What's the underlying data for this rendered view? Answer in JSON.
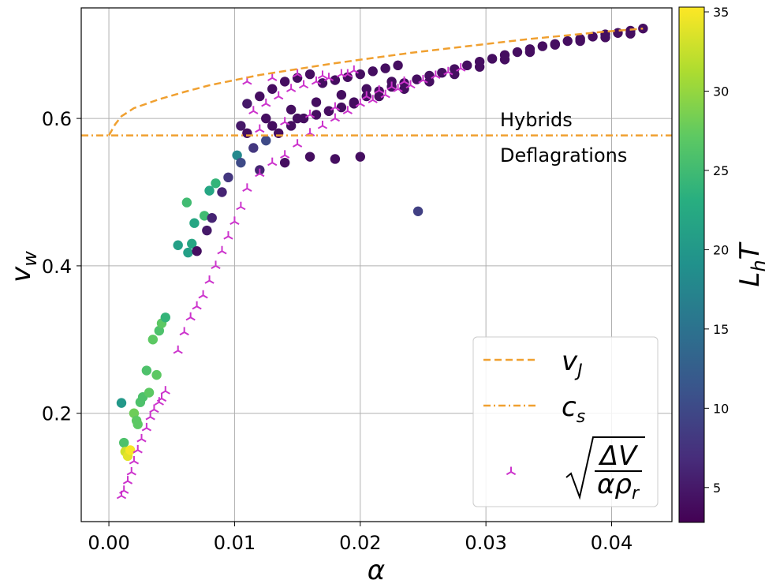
{
  "chart_data": {
    "type": "scatter",
    "xlabel": "α",
    "ylabel_main": "v",
    "ylabel_sub": "w",
    "xlim": [
      -0.0022,
      0.0448
    ],
    "ylim": [
      0.053,
      0.75
    ],
    "x_ticks": [
      0.0,
      0.01,
      0.02,
      0.03,
      0.04
    ],
    "x_tick_labels": [
      "0.00",
      "0.01",
      "0.02",
      "0.03",
      "0.04"
    ],
    "y_ticks": [
      0.2,
      0.4,
      0.6
    ],
    "y_tick_labels": [
      "0.2",
      "0.4",
      "0.6"
    ],
    "grid": true,
    "annotations": [
      "Hybrids",
      "Deflagrations"
    ],
    "colorbar": {
      "label_main": "L",
      "label_sub": "h",
      "label_tail": "T",
      "range": [
        2.8,
        35.3
      ],
      "colormap": "viridis",
      "ticks": [
        5,
        10,
        15,
        20,
        25,
        30,
        35
      ],
      "tick_labels": [
        "5",
        "10",
        "15",
        "20",
        "25",
        "30",
        "35"
      ]
    },
    "legend": {
      "placement": "lower-right",
      "entries": [
        {
          "label_main": "v",
          "label_sub": "J",
          "style": "dashed",
          "color": "#f0a030"
        },
        {
          "label_main": "c",
          "label_sub": "s",
          "style": "dashdot",
          "color": "#f0a030"
        },
        {
          "label_main": "ΔV",
          "label_den": "αρ",
          "label_den_sub": "r",
          "style": "tri-marker",
          "color": "#cc33cc"
        }
      ]
    },
    "series": [
      {
        "name": "v_J",
        "kind": "curve",
        "color": "#f0a030",
        "x": [
          0.0,
          0.0005,
          0.001,
          0.002,
          0.004,
          0.006,
          0.008,
          0.01,
          0.012,
          0.015,
          0.018,
          0.021,
          0.024,
          0.027,
          0.03,
          0.033,
          0.036,
          0.039,
          0.0425
        ],
        "y": [
          0.577,
          0.592,
          0.603,
          0.614,
          0.626,
          0.636,
          0.645,
          0.652,
          0.659,
          0.667,
          0.675,
          0.682,
          0.689,
          0.695,
          0.701,
          0.707,
          0.712,
          0.717,
          0.722
        ]
      },
      {
        "name": "c_s",
        "kind": "hline",
        "color": "#f0a030",
        "y": 0.577
      },
      {
        "name": "sqrt(ΔV/(αρ_r))",
        "kind": "markers",
        "color": "#cc33cc",
        "x": [
          0.001,
          0.0012,
          0.0015,
          0.0018,
          0.002,
          0.0023,
          0.0026,
          0.003,
          0.0033,
          0.0036,
          0.004,
          0.0042,
          0.0045,
          0.0055,
          0.006,
          0.0065,
          0.007,
          0.0075,
          0.008,
          0.0085,
          0.009,
          0.0095,
          0.01,
          0.0105,
          0.011,
          0.012,
          0.013,
          0.014,
          0.015,
          0.016,
          0.017,
          0.018,
          0.019,
          0.02,
          0.021,
          0.022,
          0.023,
          0.024,
          0.025,
          0.026,
          0.027,
          0.028,
          0.0115,
          0.0125,
          0.0135,
          0.0145,
          0.0155,
          0.0165,
          0.0175,
          0.0185,
          0.0195,
          0.012,
          0.014,
          0.016,
          0.018,
          0.0205,
          0.0215,
          0.0225,
          0.0235,
          0.011,
          0.013,
          0.015,
          0.017,
          0.019
        ],
        "y": [
          0.088,
          0.095,
          0.108,
          0.12,
          0.135,
          0.15,
          0.165,
          0.18,
          0.195,
          0.205,
          0.215,
          0.22,
          0.23,
          0.285,
          0.31,
          0.33,
          0.345,
          0.36,
          0.38,
          0.4,
          0.42,
          0.44,
          0.46,
          0.48,
          0.505,
          0.525,
          0.54,
          0.55,
          0.565,
          0.58,
          0.59,
          0.6,
          0.61,
          0.62,
          0.625,
          0.632,
          0.64,
          0.645,
          0.652,
          0.658,
          0.663,
          0.668,
          0.61,
          0.62,
          0.63,
          0.64,
          0.645,
          0.65,
          0.655,
          0.66,
          0.665,
          0.585,
          0.595,
          0.605,
          0.615,
          0.63,
          0.638,
          0.643,
          0.65,
          0.65,
          0.655,
          0.66,
          0.658,
          0.66
        ]
      },
      {
        "name": "L_h T",
        "kind": "colored-points",
        "x": [
          0.001,
          0.0012,
          0.0013,
          0.0015,
          0.0017,
          0.002,
          0.0022,
          0.0023,
          0.0025,
          0.0027,
          0.003,
          0.0032,
          0.0035,
          0.0038,
          0.004,
          0.0042,
          0.0045,
          0.0055,
          0.0062,
          0.0063,
          0.0066,
          0.0068,
          0.007,
          0.0076,
          0.0078,
          0.008,
          0.0082,
          0.0085,
          0.009,
          0.0095,
          0.0102,
          0.0105,
          0.0115,
          0.0125,
          0.0135,
          0.0145,
          0.0155,
          0.0165,
          0.0175,
          0.0185,
          0.0195,
          0.0205,
          0.0215,
          0.0225,
          0.0235,
          0.0245,
          0.0255,
          0.0265,
          0.0275,
          0.0285,
          0.0295,
          0.0305,
          0.0315,
          0.0325,
          0.0335,
          0.0345,
          0.0355,
          0.0365,
          0.0375,
          0.0385,
          0.0395,
          0.0405,
          0.0415,
          0.0425,
          0.011,
          0.012,
          0.013,
          0.014,
          0.015,
          0.016,
          0.017,
          0.018,
          0.019,
          0.02,
          0.021,
          0.022,
          0.023,
          0.0246,
          0.012,
          0.014,
          0.016,
          0.018,
          0.02,
          0.011,
          0.013,
          0.015,
          0.0175,
          0.0195,
          0.0215,
          0.0235,
          0.0255,
          0.0275,
          0.0295,
          0.0315,
          0.0335,
          0.0355,
          0.0375,
          0.0395,
          0.0415,
          0.0105,
          0.0125,
          0.0145,
          0.0165,
          0.0185,
          0.0205,
          0.0225
        ],
        "y": [
          0.214,
          0.16,
          0.148,
          0.142,
          0.15,
          0.2,
          0.19,
          0.185,
          0.215,
          0.222,
          0.258,
          0.228,
          0.3,
          0.252,
          0.312,
          0.322,
          0.33,
          0.428,
          0.486,
          0.418,
          0.43,
          0.458,
          0.42,
          0.468,
          0.448,
          0.502,
          0.465,
          0.512,
          0.5,
          0.52,
          0.55,
          0.54,
          0.56,
          0.57,
          0.58,
          0.59,
          0.6,
          0.605,
          0.61,
          0.615,
          0.622,
          0.63,
          0.637,
          0.643,
          0.648,
          0.653,
          0.658,
          0.662,
          0.667,
          0.672,
          0.677,
          0.681,
          0.686,
          0.69,
          0.694,
          0.698,
          0.701,
          0.705,
          0.708,
          0.711,
          0.714,
          0.716,
          0.719,
          0.722,
          0.62,
          0.63,
          0.64,
          0.65,
          0.655,
          0.66,
          0.648,
          0.652,
          0.656,
          0.66,
          0.664,
          0.668,
          0.672,
          0.474,
          0.53,
          0.54,
          0.548,
          0.545,
          0.548,
          0.58,
          0.59,
          0.6,
          0.61,
          0.62,
          0.63,
          0.64,
          0.65,
          0.66,
          0.67,
          0.68,
          0.69,
          0.7,
          0.705,
          0.71,
          0.715,
          0.59,
          0.6,
          0.612,
          0.622,
          0.632,
          0.64,
          0.65
        ],
        "c": [
          20,
          26,
          33,
          34,
          35,
          28,
          27,
          27,
          26,
          26,
          26,
          27,
          27,
          27,
          26,
          27,
          24,
          21,
          25,
          21,
          22,
          22,
          4,
          25,
          5,
          22,
          6,
          24,
          6,
          8,
          18,
          10,
          8,
          10,
          4,
          4,
          4,
          4,
          4,
          4,
          4,
          4,
          4,
          4,
          4,
          4,
          4,
          4,
          4,
          4,
          4,
          4,
          4,
          4,
          4,
          4,
          4,
          4,
          4,
          4,
          4,
          4,
          4,
          4,
          5,
          4,
          4,
          4,
          4,
          4,
          4,
          4,
          4,
          4,
          4,
          4,
          4,
          9,
          6,
          4,
          4,
          4,
          4,
          4,
          4,
          4,
          4,
          4,
          4,
          4,
          4,
          4,
          4,
          4,
          4,
          4,
          4,
          4,
          4,
          5,
          4,
          4,
          4,
          4,
          4,
          4
        ]
      }
    ]
  }
}
